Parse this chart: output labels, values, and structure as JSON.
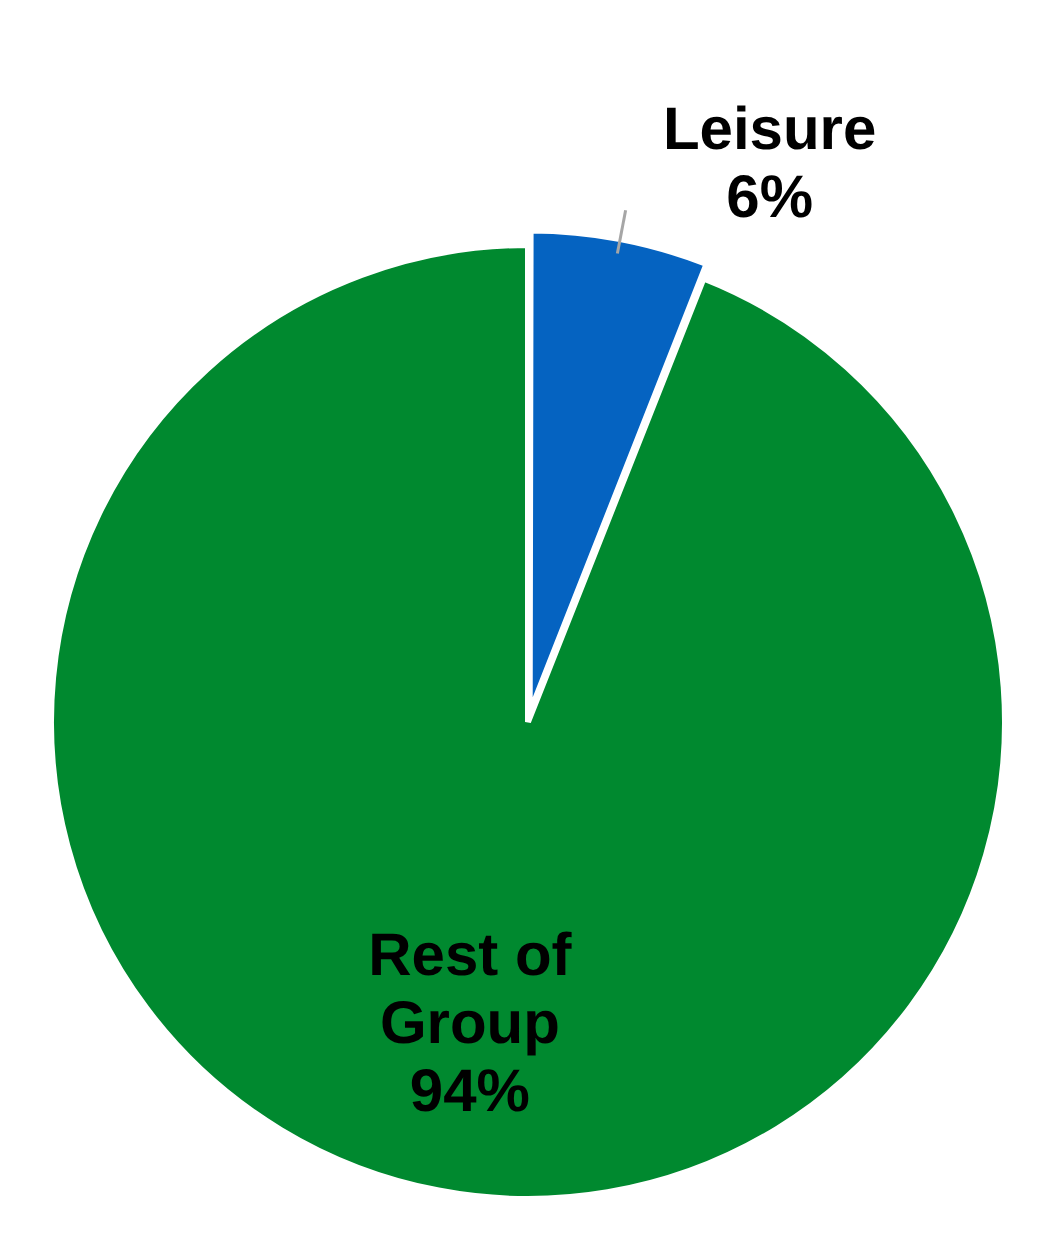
{
  "chart_data": {
    "type": "pie",
    "categories": [
      "Leisure",
      "Rest of Group"
    ],
    "values": [
      6,
      94
    ],
    "colors": [
      "#0563c1",
      "#00892f"
    ],
    "value_labels": [
      "6%",
      "94%"
    ],
    "legend": false
  }
}
